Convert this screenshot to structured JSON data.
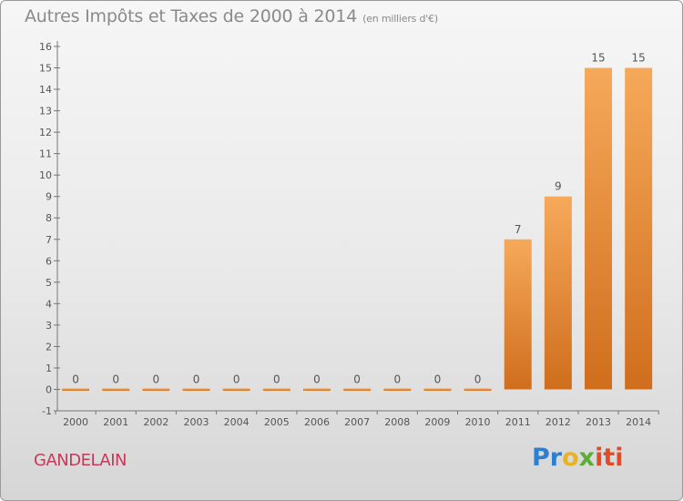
{
  "header": {
    "title": "Autres Impôts et Taxes de 2000 à 2014",
    "subtitle": "(en milliers d'€)"
  },
  "commune": "GANDELAIN",
  "logo": {
    "letters": [
      "Pr",
      "o",
      "x",
      "iti"
    ],
    "colors": [
      "#2f7fd1",
      "#e8b321",
      "#5aae35",
      "#e24b25"
    ]
  },
  "chart_data": {
    "type": "bar",
    "title": "Autres Impôts et Taxes de 2000 à 2014",
    "subtitle": "(en milliers d'€)",
    "categories": [
      "2000",
      "2001",
      "2002",
      "2003",
      "2004",
      "2005",
      "2006",
      "2007",
      "2008",
      "2009",
      "2010",
      "2011",
      "2012",
      "2013",
      "2014"
    ],
    "values": [
      0,
      0,
      0,
      0,
      0,
      0,
      0,
      0,
      0,
      0,
      0,
      7,
      9,
      15,
      15
    ],
    "data_labels": [
      "0",
      "0",
      "0",
      "0",
      "0",
      "0",
      "0",
      "0",
      "0",
      "0",
      "0",
      "7",
      "9",
      "15",
      "15"
    ],
    "ylim": [
      -1,
      16
    ],
    "yticks": [
      -1,
      0,
      1,
      2,
      3,
      4,
      5,
      6,
      7,
      8,
      9,
      10,
      11,
      12,
      13,
      14,
      15,
      16
    ],
    "grid": false,
    "legend": "none",
    "colors": {
      "bar_light": "#f6a95a",
      "bar_dark": "#cf6e1d",
      "text": "#555555",
      "axis": "#777777"
    }
  }
}
